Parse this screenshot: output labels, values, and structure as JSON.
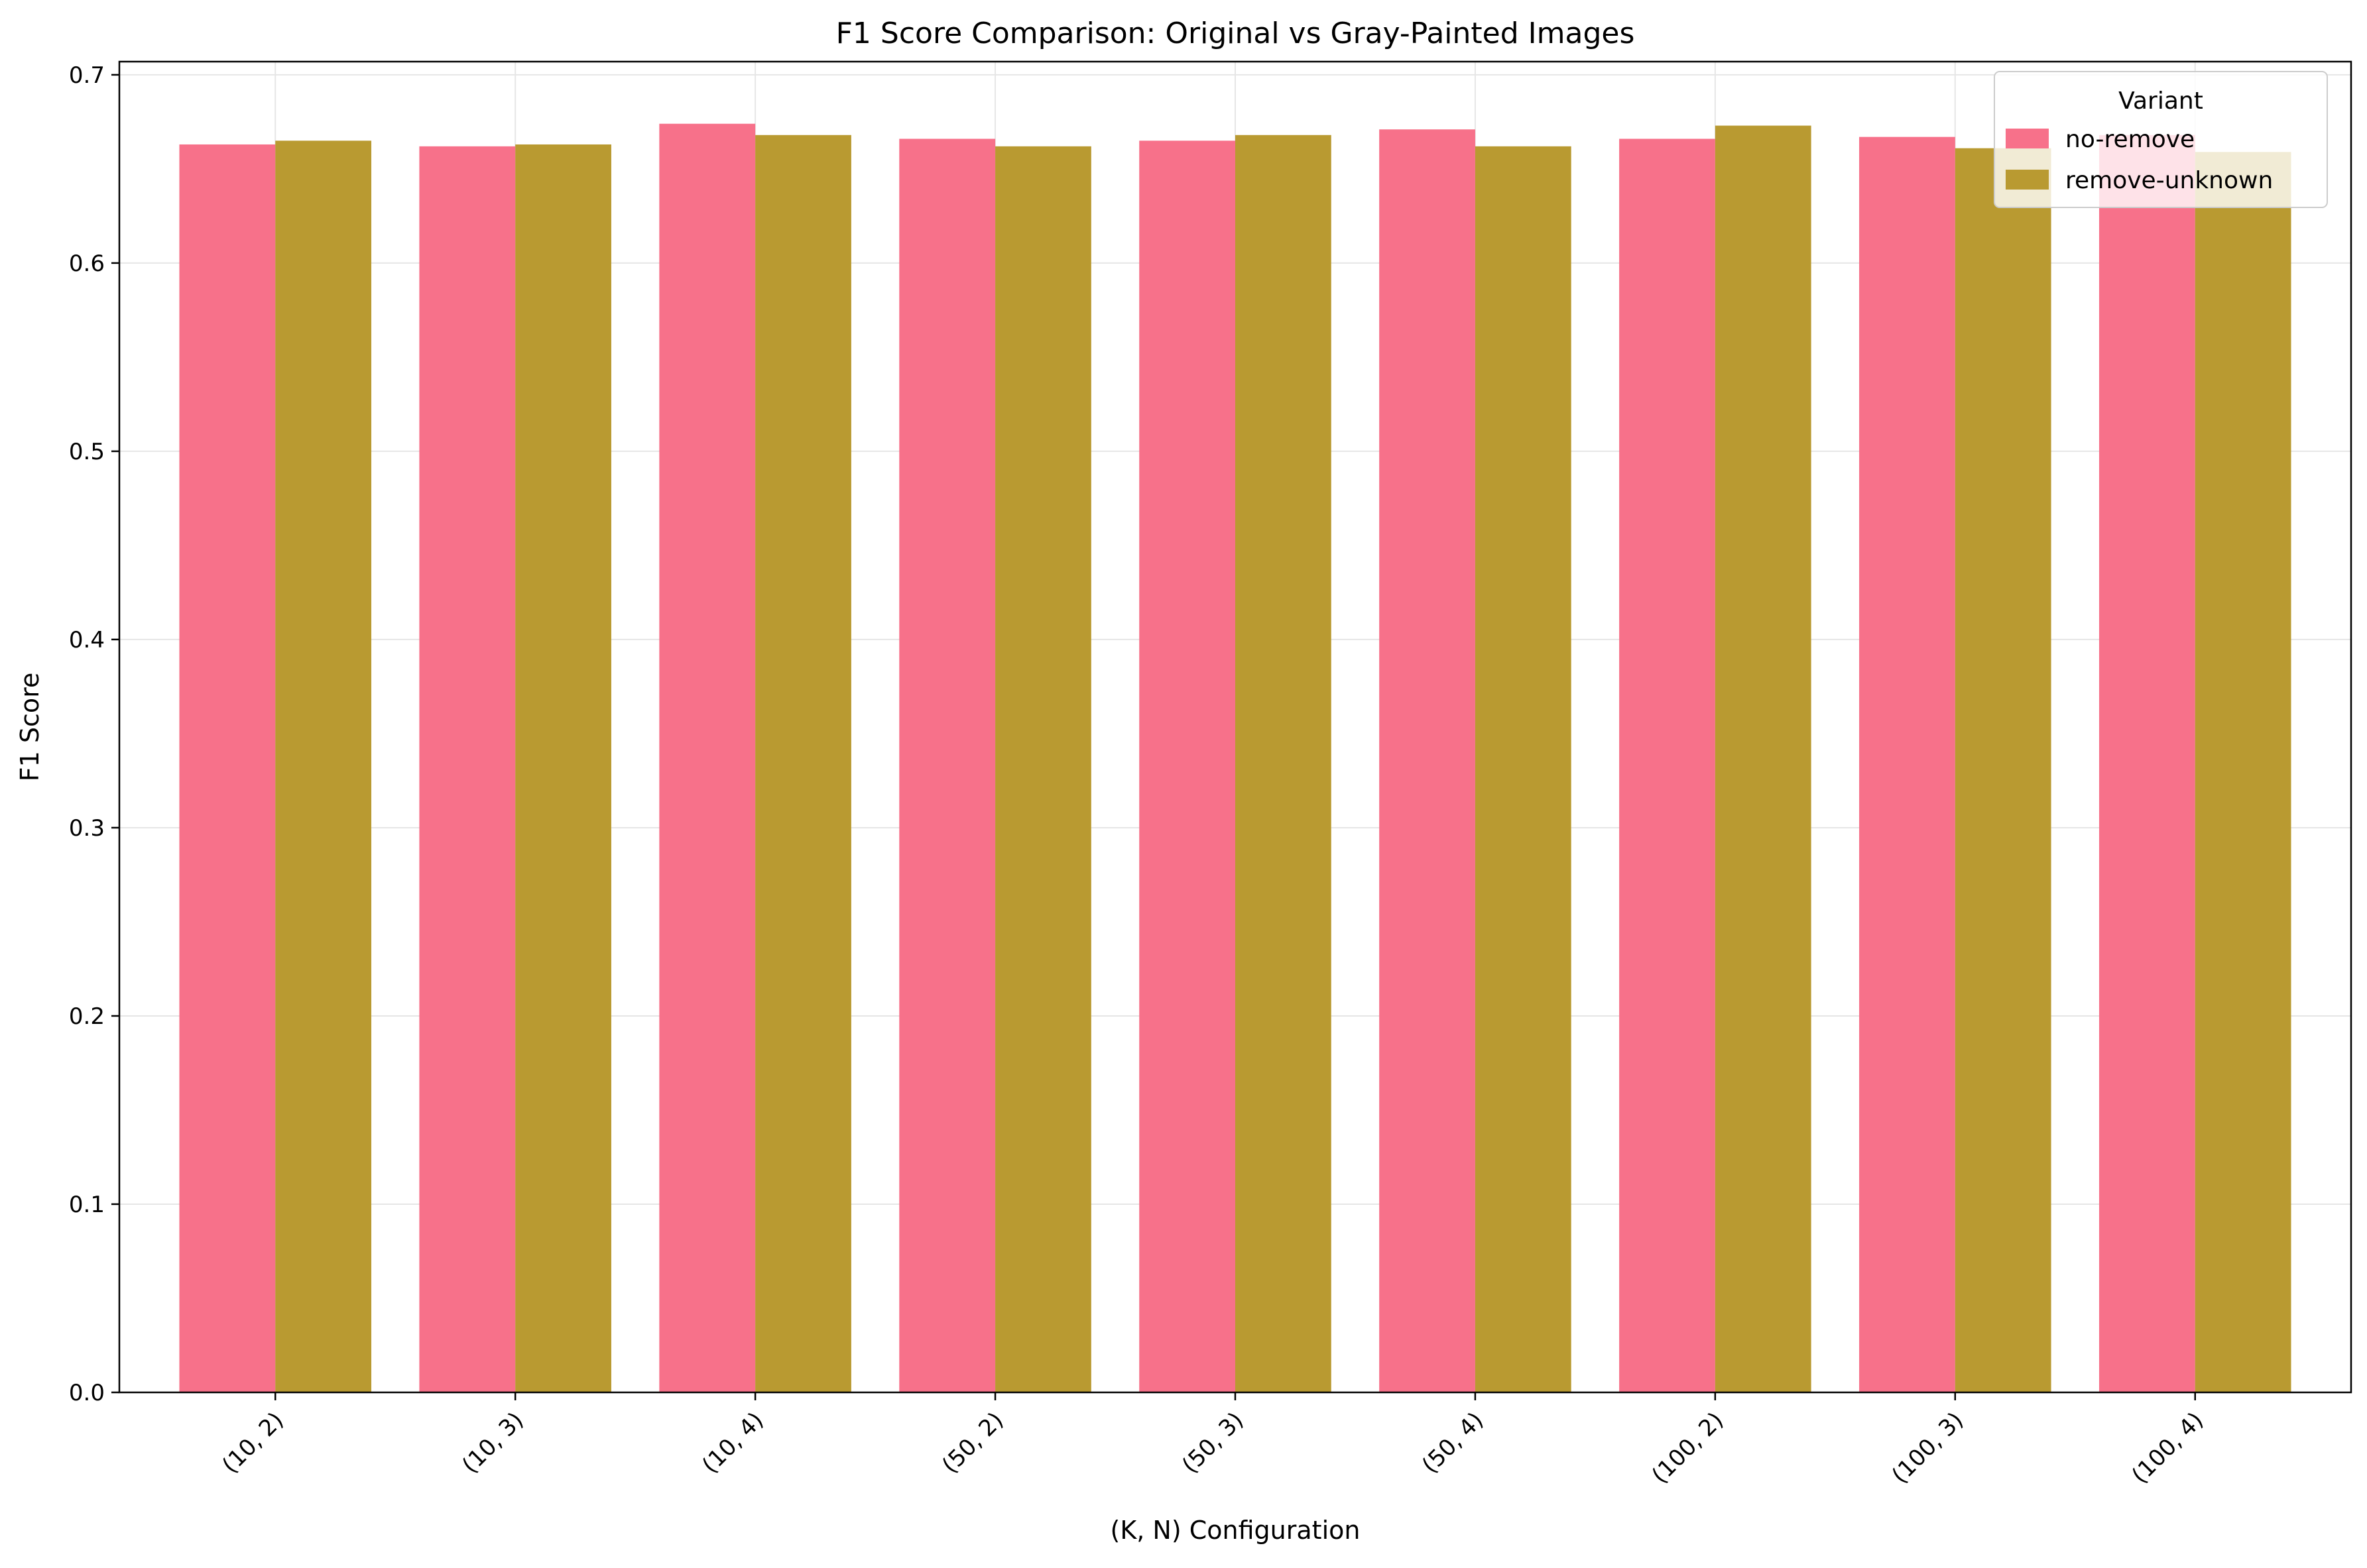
{
  "chart_data": {
    "type": "bar",
    "title": "F1 Score Comparison: Original vs Gray-Painted Images",
    "xlabel": "(K, N) Configuration",
    "ylabel": "F1 Score",
    "ylim": [
      0,
      0.707
    ],
    "yticks": [
      0.0,
      0.1,
      0.2,
      0.3,
      0.4,
      0.5,
      0.6,
      0.7
    ],
    "ytick_labels": [
      "0.0",
      "0.1",
      "0.2",
      "0.3",
      "0.4",
      "0.5",
      "0.6",
      "0.7"
    ],
    "grid": true,
    "categories": [
      "(10, 2)",
      "(10, 3)",
      "(10, 4)",
      "(50, 2)",
      "(50, 3)",
      "(50, 4)",
      "(100, 2)",
      "(100, 3)",
      "(100, 4)"
    ],
    "series": [
      {
        "name": "no-remove",
        "color": "#f7718a",
        "values": [
          0.663,
          0.662,
          0.674,
          0.666,
          0.665,
          0.671,
          0.666,
          0.667,
          0.668
        ]
      },
      {
        "name": "remove-unknown",
        "color": "#b99a31",
        "values": [
          0.665,
          0.663,
          0.668,
          0.662,
          0.668,
          0.662,
          0.673,
          0.661,
          0.659
        ]
      }
    ],
    "legend": {
      "title": "Variant",
      "placement": "top-right"
    }
  }
}
